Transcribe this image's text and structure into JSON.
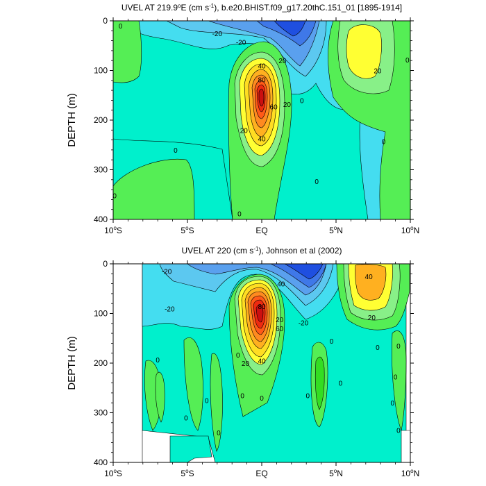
{
  "colors": {
    "c_neg30": "#1f4fe0",
    "c_neg25": "#3f78e8",
    "c_neg20": "#5aa0ee",
    "c_neg15": "#5cc8f0",
    "c_neg10": "#44ddf0",
    "c_neg5": "#33e6e6",
    "c_zero": "#00f0cc",
    "c_pos5": "#2ee08a",
    "c_pos10": "#55ee55",
    "c_pos15": "#33dd22",
    "c_pos20": "#88f088",
    "c_pos30": "#ffff33",
    "c_pos40": "#ffdd22",
    "c_pos50": "#ffb020",
    "c_pos60": "#ff8a20",
    "c_pos70": "#ff5a18",
    "c_pos80": "#ee2a10",
    "c_pos90": "#cc1010",
    "missing": "#ffffff"
  },
  "chart_data": [
    {
      "type": "contour",
      "title_prefix": "UVEL AT 219.9",
      "title_sup1": "o",
      "title_mid": "E (cm s",
      "title_sup2": "-1",
      "title_suffix": "), b.e20.BHIST.f09_g17.20thC.151_01 [1895-1914]",
      "ylabel": "DEPTH (m)",
      "xlim": [
        -10,
        10
      ],
      "ylim": [
        400,
        0
      ],
      "x_ticks": [
        {
          "value": -10,
          "label": "10",
          "sup": "o",
          "hem": "S"
        },
        {
          "value": -5,
          "label": "5",
          "sup": "o",
          "hem": "S"
        },
        {
          "value": 0,
          "label": "EQ",
          "sup": "",
          "hem": ""
        },
        {
          "value": 5,
          "label": "5",
          "sup": "o",
          "hem": "N"
        },
        {
          "value": 10,
          "label": "10",
          "sup": "o",
          "hem": "N"
        }
      ],
      "y_ticks": [
        {
          "value": 0,
          "label": "0"
        },
        {
          "value": 100,
          "label": "100"
        },
        {
          "value": 200,
          "label": "200"
        },
        {
          "value": 300,
          "label": "300"
        },
        {
          "value": 400,
          "label": "400"
        }
      ],
      "contour_labels": [
        {
          "x": 0.0,
          "y": 90,
          "text": "40"
        },
        {
          "x": 0.0,
          "y": 118,
          "text": "80"
        },
        {
          "x": -1.2,
          "y": 220,
          "text": "20"
        },
        {
          "x": 0.0,
          "y": 237,
          "text": "40"
        },
        {
          "x": 0.8,
          "y": 173,
          "text": "60"
        },
        {
          "x": 1.7,
          "y": 168,
          "text": "20"
        },
        {
          "x": -9.5,
          "y": 10,
          "text": "0"
        },
        {
          "x": -1.4,
          "y": 43,
          "text": "-20"
        },
        {
          "x": 1.4,
          "y": 80,
          "text": "20"
        },
        {
          "x": 7.8,
          "y": 100,
          "text": "20"
        },
        {
          "x": -5.8,
          "y": 260,
          "text": "0"
        },
        {
          "x": 2.7,
          "y": 160,
          "text": "0"
        },
        {
          "x": 8.2,
          "y": 243,
          "text": "0"
        },
        {
          "x": 9.8,
          "y": 78,
          "text": "0"
        },
        {
          "x": 3.7,
          "y": 323,
          "text": "0"
        },
        {
          "x": -9.9,
          "y": 352,
          "text": "0"
        },
        {
          "x": -1.5,
          "y": 388,
          "text": "0"
        },
        {
          "x": -3.0,
          "y": 25,
          "text": "-20"
        }
      ]
    },
    {
      "type": "contour",
      "title_prefix": "UVEL AT 220 (cm s",
      "title_sup1": "",
      "title_mid": "",
      "title_sup2": "-1",
      "title_suffix": "), Johnson et al (2002)",
      "ylabel": "DEPTH (m)",
      "xlim": [
        -10,
        10
      ],
      "ylim": [
        400,
        0
      ],
      "x_ticks": [
        {
          "value": -10,
          "label": "10",
          "sup": "o",
          "hem": "S"
        },
        {
          "value": -5,
          "label": "5",
          "sup": "o",
          "hem": "S"
        },
        {
          "value": 0,
          "label": "EQ",
          "sup": "",
          "hem": ""
        },
        {
          "value": 5,
          "label": "5",
          "sup": "o",
          "hem": "N"
        },
        {
          "value": 10,
          "label": "10",
          "sup": "o",
          "hem": "N"
        }
      ],
      "y_ticks": [
        {
          "value": 0,
          "label": "0"
        },
        {
          "value": 100,
          "label": "100"
        },
        {
          "value": 200,
          "label": "200"
        },
        {
          "value": 300,
          "label": "300"
        },
        {
          "value": 400,
          "label": "400"
        }
      ],
      "contour_labels": [
        {
          "x": -6.4,
          "y": 15,
          "text": "-20"
        },
        {
          "x": 1.3,
          "y": 40,
          "text": "40"
        },
        {
          "x": -6.2,
          "y": 90,
          "text": "-20"
        },
        {
          "x": 0.0,
          "y": 85,
          "text": "80"
        },
        {
          "x": 1.2,
          "y": 130,
          "text": "60"
        },
        {
          "x": 1.2,
          "y": 112,
          "text": "20"
        },
        {
          "x": 2.8,
          "y": 118,
          "text": "-20"
        },
        {
          "x": -1.1,
          "y": 200,
          "text": "20"
        },
        {
          "x": 0.0,
          "y": 195,
          "text": "40"
        },
        {
          "x": 7.2,
          "y": 25,
          "text": "40"
        },
        {
          "x": 7.4,
          "y": 108,
          "text": "20"
        },
        {
          "x": 4.7,
          "y": 155,
          "text": "0"
        },
        {
          "x": 7.8,
          "y": 168,
          "text": "0"
        },
        {
          "x": 9.2,
          "y": 165,
          "text": "0"
        },
        {
          "x": 9.0,
          "y": 227,
          "text": "0"
        },
        {
          "x": 8.8,
          "y": 280,
          "text": "0"
        },
        {
          "x": 9.2,
          "y": 335,
          "text": "0"
        },
        {
          "x": -7.0,
          "y": 193,
          "text": "0"
        },
        {
          "x": -3.7,
          "y": 275,
          "text": "0"
        },
        {
          "x": -5.1,
          "y": 310,
          "text": "0"
        },
        {
          "x": -2.9,
          "y": 340,
          "text": "0"
        },
        {
          "x": -1.6,
          "y": 183,
          "text": "0"
        },
        {
          "x": -1.3,
          "y": 265,
          "text": "0"
        },
        {
          "x": 3.1,
          "y": 265,
          "text": "0"
        },
        {
          "x": 5.3,
          "y": 240,
          "text": "0"
        },
        {
          "x": 0.0,
          "y": 270,
          "text": "0"
        }
      ]
    }
  ]
}
